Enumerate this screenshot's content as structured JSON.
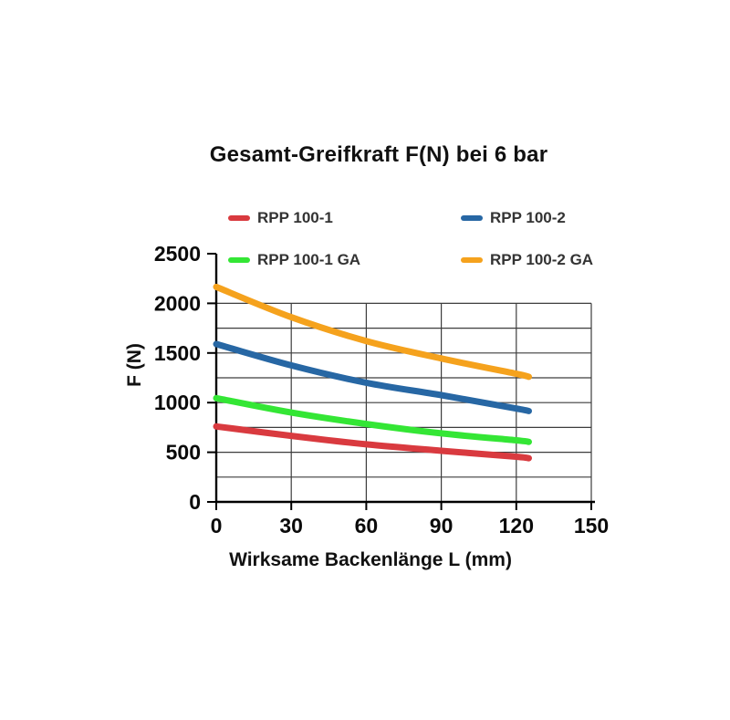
{
  "chart_data": {
    "type": "line",
    "title": "Gesamt-Greifkraft F(N) bei 6 bar",
    "xlabel": "Wirksame Backenlänge L (mm)",
    "ylabel": "F (N)",
    "xlim": [
      0,
      150
    ],
    "ylim": [
      0,
      2500
    ],
    "x_ticks": [
      0,
      30,
      60,
      90,
      120,
      150
    ],
    "y_ticks": [
      0,
      500,
      1000,
      1500,
      2000,
      2500
    ],
    "grid": {
      "on": true,
      "x_step": 30,
      "y_step": 250,
      "y_grid_max": 2000
    },
    "legend_position": "top",
    "series": [
      {
        "name": "RPP 100-1",
        "color": "#d93a3f",
        "points": [
          [
            0,
            760
          ],
          [
            30,
            665
          ],
          [
            60,
            580
          ],
          [
            90,
            515
          ],
          [
            120,
            455
          ],
          [
            125,
            440
          ]
        ]
      },
      {
        "name": "RPP 100-2",
        "color": "#2767a4",
        "points": [
          [
            0,
            1590
          ],
          [
            30,
            1375
          ],
          [
            60,
            1200
          ],
          [
            90,
            1075
          ],
          [
            120,
            940
          ],
          [
            125,
            915
          ]
        ]
      },
      {
        "name": "RPP 100-1 GA",
        "color": "#34e635",
        "points": [
          [
            0,
            1045
          ],
          [
            30,
            900
          ],
          [
            60,
            785
          ],
          [
            90,
            690
          ],
          [
            120,
            620
          ],
          [
            125,
            605
          ]
        ]
      },
      {
        "name": "RPP 100-2 GA",
        "color": "#f5a21d",
        "points": [
          [
            0,
            2165
          ],
          [
            30,
            1860
          ],
          [
            60,
            1620
          ],
          [
            90,
            1445
          ],
          [
            120,
            1290
          ],
          [
            125,
            1260
          ]
        ]
      }
    ]
  }
}
